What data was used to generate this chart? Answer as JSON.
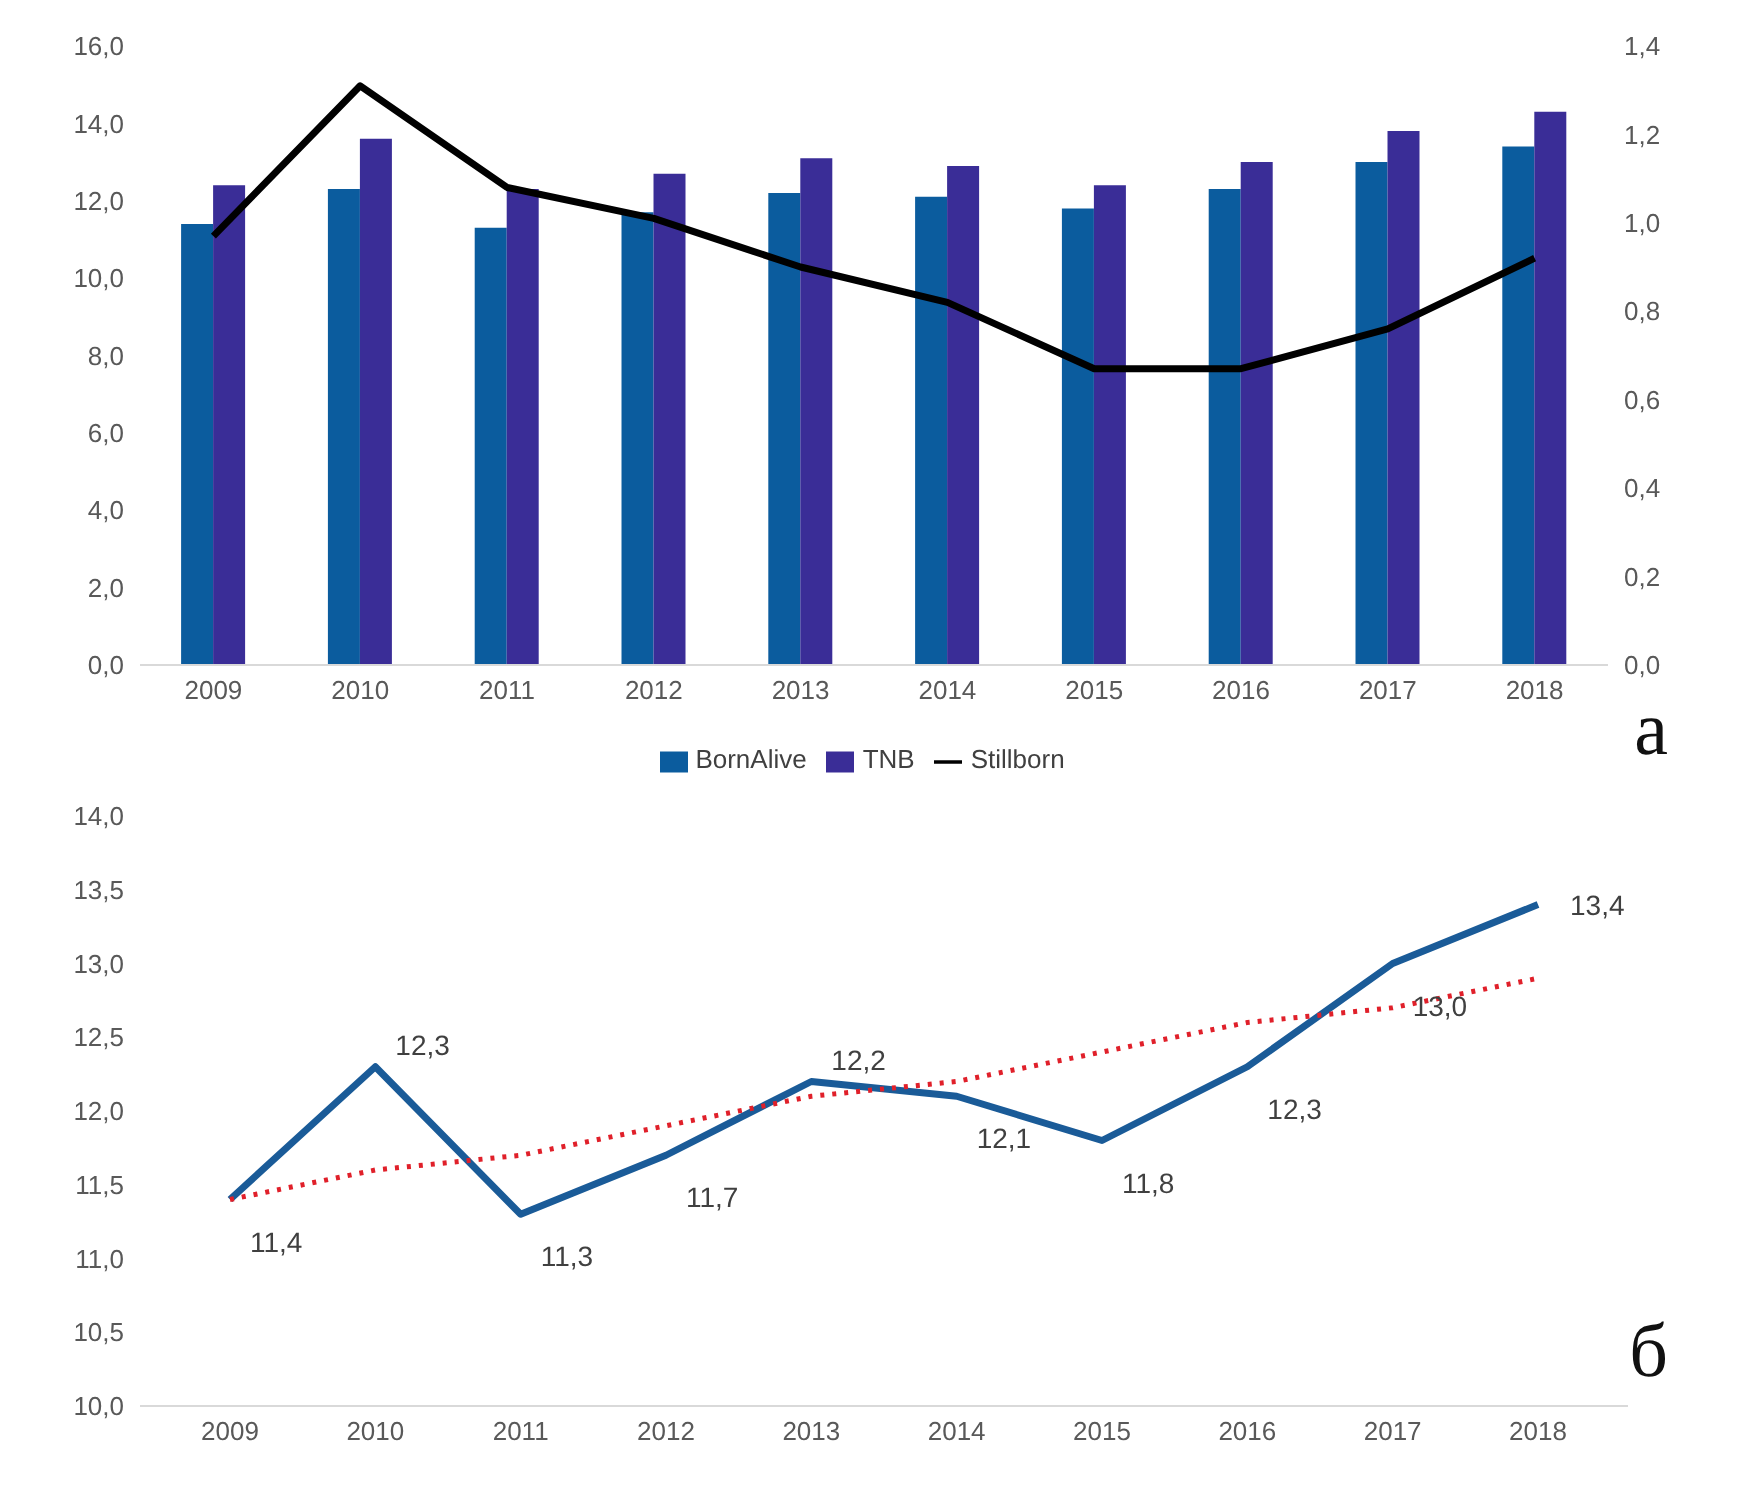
{
  "chart_data": [
    {
      "type": "bar",
      "categories": [
        "2009",
        "2010",
        "2011",
        "2012",
        "2013",
        "2014",
        "2015",
        "2016",
        "2017",
        "2018"
      ],
      "series": [
        {
          "name": "BornAlive",
          "color": "#0b5c9e",
          "values": [
            11.4,
            12.3,
            11.3,
            11.7,
            12.2,
            12.1,
            11.8,
            12.3,
            13.0,
            13.4
          ]
        },
        {
          "name": "TNB",
          "color": "#3a2d97",
          "values": [
            12.4,
            13.6,
            12.3,
            12.7,
            13.1,
            12.9,
            12.4,
            13.0,
            13.8,
            14.3
          ]
        },
        {
          "name": "Stillborn",
          "type": "line",
          "axis": "y2",
          "color": "#000000",
          "marker": "none",
          "line_style": "solid",
          "values": [
            0.97,
            1.31,
            1.08,
            1.01,
            0.9,
            0.82,
            0.67,
            0.67,
            0.76,
            0.92
          ]
        }
      ],
      "ylim": [
        0,
        16
      ],
      "yticks": [
        {
          "value": 0,
          "label": "0,0"
        },
        {
          "value": 2,
          "label": "2,0"
        },
        {
          "value": 4,
          "label": "4,0"
        },
        {
          "value": 6,
          "label": "6,0"
        },
        {
          "value": 8,
          "label": "8,0"
        },
        {
          "value": 10,
          "label": "10,0"
        },
        {
          "value": 12,
          "label": "12,0"
        },
        {
          "value": 14,
          "label": "14,0"
        },
        {
          "value": 16,
          "label": "16,0"
        }
      ],
      "y2lim": [
        0,
        1.4
      ],
      "y2ticks": [
        {
          "value": 0,
          "label": "0,0"
        },
        {
          "value": 0.2,
          "label": "0,2"
        },
        {
          "value": 0.4,
          "label": "0,4"
        },
        {
          "value": 0.6,
          "label": "0,6"
        },
        {
          "value": 0.8,
          "label": "0,8"
        },
        {
          "value": 1.0,
          "label": "1,0"
        },
        {
          "value": 1.2,
          "label": "1,2"
        },
        {
          "value": 1.4,
          "label": "1,4"
        }
      ],
      "legend": "bottom",
      "annotations": [
        "а"
      ]
    },
    {
      "type": "line",
      "categories": [
        "2009",
        "2010",
        "2011",
        "2012",
        "2013",
        "2014",
        "2015",
        "2016",
        "2017",
        "2018"
      ],
      "series": [
        {
          "color": "#1a5b98",
          "marker": "none",
          "line_style": "solid",
          "values": [
            11.4,
            12.3,
            11.3,
            11.7,
            12.2,
            12.1,
            11.8,
            12.3,
            13.0,
            13.4
          ],
          "value_labels": [
            "11,4",
            "12,3",
            "11,3",
            "11,7",
            "12,2",
            "12,1",
            "11,8",
            "12,3",
            "13,0",
            "13,4"
          ]
        },
        {
          "color": "#e0202a",
          "marker": "none",
          "line_style": "dotted",
          "values": [
            11.4,
            11.6,
            11.7,
            11.9,
            12.1,
            12.2,
            12.4,
            12.6,
            12.7,
            12.9
          ]
        }
      ],
      "ylim": [
        10,
        14
      ],
      "yticks": [
        {
          "value": 10,
          "label": "10,0"
        },
        {
          "value": 10.5,
          "label": "10,5"
        },
        {
          "value": 11,
          "label": "11,0"
        },
        {
          "value": 11.5,
          "label": "11,5"
        },
        {
          "value": 12,
          "label": "12,0"
        },
        {
          "value": 12.5,
          "label": "12,5"
        },
        {
          "value": 13,
          "label": "13,0"
        },
        {
          "value": 13.5,
          "label": "13,5"
        },
        {
          "value": 14,
          "label": "14,0"
        }
      ],
      "annotations": [
        "б"
      ]
    }
  ]
}
